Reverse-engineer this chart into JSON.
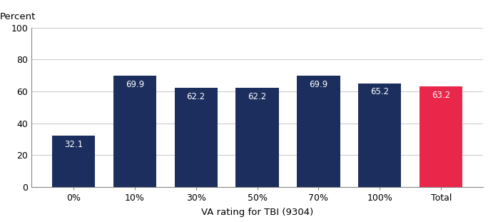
{
  "categories": [
    "0%",
    "10%",
    "30%",
    "50%",
    "70%",
    "100%",
    "Total"
  ],
  "values": [
    32.1,
    69.9,
    62.2,
    62.2,
    69.9,
    65.2,
    63.2
  ],
  "bar_colors": [
    "#1b2e5e",
    "#1b2e5e",
    "#1b2e5e",
    "#1b2e5e",
    "#1b2e5e",
    "#1b2e5e",
    "#e8274b"
  ],
  "xlabel": "VA rating for TBI (9304)",
  "ylabel": "Percent",
  "ylim": [
    0,
    100
  ],
  "yticks": [
    0,
    20,
    40,
    60,
    80,
    100
  ],
  "label_color": "#ffffff",
  "label_fontsize": 8.5,
  "axis_fontsize": 9.5,
  "xlabel_fontsize": 9.5,
  "background_color": "#ffffff",
  "grid_color": "#cccccc"
}
